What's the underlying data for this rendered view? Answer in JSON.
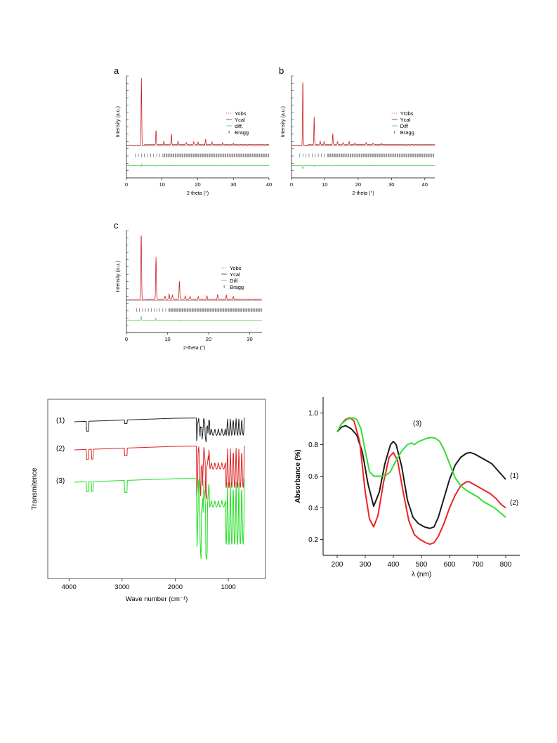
{
  "charts": {
    "a": {
      "type": "line",
      "panel_label": "a",
      "xlabel": "2-theta (°)",
      "ylabel": "Intensity (a.u.)",
      "xlim": [
        0,
        40
      ],
      "xticks": [
        0,
        10,
        20,
        30,
        40
      ],
      "legend": [
        "Yobs",
        "Ycal",
        "diff.",
        "Bragg"
      ],
      "peaks": [
        [
          4.2,
          1.0
        ],
        [
          8.3,
          0.22
        ],
        [
          12.6,
          0.16
        ],
        [
          10.5,
          0.05
        ],
        [
          14.5,
          0.05
        ],
        [
          16.8,
          0.04
        ],
        [
          18.9,
          0.05
        ],
        [
          20.1,
          0.04
        ],
        [
          22.2,
          0.08
        ],
        [
          24.0,
          0.04
        ],
        [
          27.0,
          0.03
        ],
        [
          30.0,
          0.02
        ]
      ],
      "colors": {
        "obs": "#cc2222",
        "bragg": "#222222",
        "diff": "#33bb33"
      }
    },
    "b": {
      "type": "line",
      "panel_label": "b",
      "xlabel": "2-theta (°)",
      "ylabel": "Intensity (a.u.)",
      "xlim": [
        0,
        43
      ],
      "xticks": [
        0,
        10,
        20,
        30,
        40
      ],
      "legend": [
        "YObs",
        "Ycal",
        "Diff",
        "Bragg"
      ],
      "peaks": [
        [
          3.4,
          1.0
        ],
        [
          6.8,
          0.42
        ],
        [
          8.6,
          0.06
        ],
        [
          9.8,
          0.05
        ],
        [
          12.4,
          0.17
        ],
        [
          13.8,
          0.05
        ],
        [
          15.5,
          0.04
        ],
        [
          17.3,
          0.05
        ],
        [
          19.0,
          0.03
        ],
        [
          22.4,
          0.04
        ],
        [
          24.5,
          0.03
        ],
        [
          27.0,
          0.02
        ]
      ],
      "colors": {
        "obs": "#cc2222",
        "bragg": "#222222",
        "diff": "#33bb33"
      }
    },
    "c": {
      "type": "line",
      "panel_label": "c",
      "xlabel": "2-theta (°)",
      "ylabel": "Intensity (a.u.)",
      "xlim": [
        0,
        33
      ],
      "xticks": [
        0,
        10,
        20,
        30
      ],
      "legend": [
        "Yobs",
        "Ycal",
        "Diff",
        "Bragg"
      ],
      "peaks": [
        [
          3.6,
          1.0
        ],
        [
          7.2,
          0.63
        ],
        [
          9.4,
          0.05
        ],
        [
          10.4,
          0.08
        ],
        [
          11.2,
          0.07
        ],
        [
          12.9,
          0.28
        ],
        [
          14.3,
          0.05
        ],
        [
          15.5,
          0.05
        ],
        [
          17.5,
          0.04
        ],
        [
          19.6,
          0.05
        ],
        [
          22.2,
          0.07
        ],
        [
          24.3,
          0.06
        ],
        [
          26.0,
          0.04
        ]
      ],
      "colors": {
        "obs": "#cc2222",
        "bragg": "#222222",
        "diff": "#33bb33"
      }
    },
    "ir": {
      "type": "line",
      "xlabel": "Wave number (cm⁻¹)",
      "ylabel": "Transmitence",
      "xlim": [
        4400,
        300
      ],
      "xticks": [
        4000,
        3000,
        2000,
        1000
      ],
      "series": [
        {
          "name": "(1)",
          "color": "#222222"
        },
        {
          "name": "(2)",
          "color": "#dd2222"
        },
        {
          "name": "(3)",
          "color": "#22dd22"
        }
      ]
    },
    "uv": {
      "type": "line",
      "xlabel": "λ (nm)",
      "ylabel": "Absorbance (%)",
      "xlim": [
        150,
        850
      ],
      "ylim": [
        0.1,
        1.1
      ],
      "xticks": [
        200,
        300,
        400,
        500,
        600,
        700,
        800
      ],
      "yticks": [
        "0.2",
        "0.4",
        "0.6",
        "0.8",
        "1.0"
      ],
      "series": [
        {
          "name": "(1)",
          "color": "#1a1a1a",
          "x": [
            200,
            215,
            230,
            250,
            270,
            290,
            310,
            330,
            350,
            370,
            390,
            400,
            410,
            430,
            450,
            470,
            490,
            510,
            530,
            545,
            560,
            580,
            600,
            620,
            640,
            660,
            675,
            690,
            710,
            730,
            750,
            770,
            790,
            800
          ],
          "y": [
            0.88,
            0.91,
            0.92,
            0.9,
            0.86,
            0.75,
            0.55,
            0.41,
            0.5,
            0.68,
            0.8,
            0.82,
            0.8,
            0.66,
            0.45,
            0.34,
            0.3,
            0.28,
            0.27,
            0.28,
            0.34,
            0.46,
            0.58,
            0.67,
            0.72,
            0.745,
            0.75,
            0.74,
            0.72,
            0.7,
            0.68,
            0.64,
            0.6,
            0.58
          ]
        },
        {
          "name": "(2)",
          "color": "#ee2222",
          "x": [
            200,
            215,
            230,
            245,
            260,
            280,
            300,
            315,
            330,
            345,
            365,
            385,
            400,
            415,
            435,
            455,
            475,
            495,
            515,
            530,
            545,
            560,
            580,
            600,
            620,
            640,
            660,
            670,
            685,
            705,
            725,
            745,
            765,
            785,
            800
          ],
          "y": [
            0.88,
            0.93,
            0.96,
            0.97,
            0.95,
            0.82,
            0.5,
            0.33,
            0.28,
            0.35,
            0.56,
            0.72,
            0.75,
            0.7,
            0.5,
            0.32,
            0.23,
            0.2,
            0.18,
            0.17,
            0.18,
            0.22,
            0.3,
            0.4,
            0.48,
            0.54,
            0.565,
            0.565,
            0.55,
            0.53,
            0.51,
            0.49,
            0.46,
            0.42,
            0.4
          ]
        },
        {
          "name": "(3)",
          "color": "#33dd33",
          "x": [
            200,
            215,
            235,
            255,
            270,
            285,
            300,
            315,
            330,
            350,
            370,
            390,
            410,
            430,
            450,
            465,
            475,
            490,
            505,
            520,
            535,
            550,
            565,
            580,
            600,
            620,
            640,
            660,
            680,
            700,
            720,
            740,
            760,
            780,
            800
          ],
          "y": [
            0.88,
            0.93,
            0.96,
            0.97,
            0.96,
            0.9,
            0.76,
            0.63,
            0.6,
            0.6,
            0.6,
            0.63,
            0.7,
            0.76,
            0.8,
            0.81,
            0.8,
            0.82,
            0.83,
            0.84,
            0.845,
            0.84,
            0.82,
            0.77,
            0.68,
            0.59,
            0.54,
            0.51,
            0.49,
            0.47,
            0.44,
            0.42,
            0.4,
            0.37,
            0.34
          ]
        }
      ]
    }
  }
}
